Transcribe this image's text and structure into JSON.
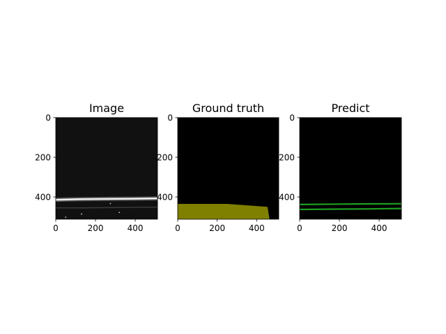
{
  "figure": {
    "background": "#ffffff"
  },
  "chart_data": [
    {
      "type": "heatmap",
      "title": "Image",
      "xlabel": "",
      "ylabel": "",
      "xlim": [
        0,
        512
      ],
      "ylim": [
        512,
        0
      ],
      "xticks": [
        0,
        200,
        400
      ],
      "yticks": [
        0,
        200,
        400
      ],
      "grid": false,
      "colors": {
        "background": "#111111",
        "band": "#f2f2f2",
        "glow": "#cfcfcf",
        "dim_line": "#3a3a3a"
      },
      "content": {
        "bright_band": [
          [
            0,
            414
          ],
          [
            120,
            411
          ],
          [
            250,
            410
          ],
          [
            380,
            409
          ],
          [
            512,
            407
          ]
        ],
        "dim_band": [
          [
            0,
            455
          ],
          [
            150,
            455
          ],
          [
            300,
            453
          ],
          [
            512,
            451
          ]
        ],
        "speckles": [
          [
            275,
            433
          ],
          [
            50,
            502
          ],
          [
            320,
            478
          ],
          [
            130,
            486
          ]
        ]
      }
    },
    {
      "type": "heatmap",
      "title": "Ground truth",
      "xlabel": "",
      "ylabel": "",
      "xlim": [
        0,
        512
      ],
      "ylim": [
        512,
        0
      ],
      "xticks": [
        0,
        200,
        400
      ],
      "yticks": [
        0,
        200,
        400
      ],
      "grid": false,
      "colors": {
        "background": "#000000",
        "mask": "#808000"
      },
      "content": {
        "mask_polygon": [
          [
            0,
            435
          ],
          [
            250,
            435
          ],
          [
            455,
            450
          ],
          [
            465,
            512
          ],
          [
            0,
            512
          ]
        ]
      }
    },
    {
      "type": "heatmap",
      "title": "Predict",
      "xlabel": "",
      "ylabel": "",
      "xlim": [
        0,
        512
      ],
      "ylim": [
        512,
        0
      ],
      "xticks": [
        0,
        200,
        400
      ],
      "yticks": [
        0,
        200,
        400
      ],
      "grid": false,
      "colors": {
        "background": "#000000",
        "line": "#1f9e1f"
      },
      "content": {
        "lines": [
          [
            [
              0,
              438
            ],
            [
              200,
              436
            ],
            [
              350,
              435
            ],
            [
              512,
              434
            ]
          ],
          [
            [
              0,
              463
            ],
            [
              200,
              461
            ],
            [
              350,
              460
            ],
            [
              512,
              458
            ]
          ]
        ]
      }
    }
  ]
}
